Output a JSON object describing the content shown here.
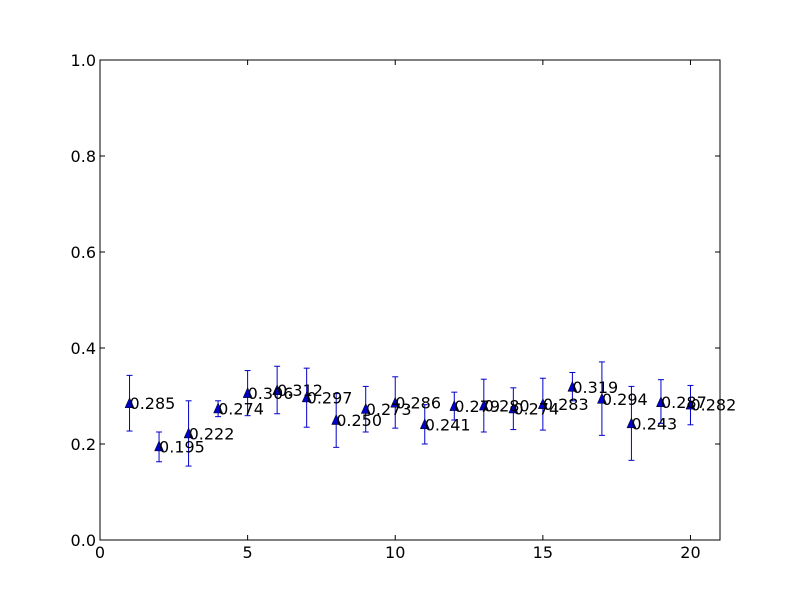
{
  "chart_data": {
    "type": "scatter",
    "title": "",
    "xlabel": "",
    "ylabel": "",
    "xlim": [
      0,
      21
    ],
    "ylim": [
      0.0,
      1.0
    ],
    "grid": false,
    "x_ticks": [
      0,
      5,
      10,
      15,
      20
    ],
    "x_tick_labels": [
      "0",
      "5",
      "10",
      "15",
      "20"
    ],
    "y_ticks": [
      0.0,
      0.2,
      0.4,
      0.6,
      0.8,
      1.0
    ],
    "y_tick_labels": [
      "0.0",
      "0.2",
      "0.4",
      "0.6",
      "0.8",
      "1.0"
    ],
    "series": [
      {
        "marker": "triangle",
        "color": "#0000cc",
        "points": [
          {
            "x": 1,
            "y": 0.285,
            "err_low": 0.227,
            "err_high": 0.343,
            "label": "0.285"
          },
          {
            "x": 2,
            "y": 0.195,
            "err_low": 0.163,
            "err_high": 0.225,
            "label": "0.195"
          },
          {
            "x": 3,
            "y": 0.222,
            "err_low": 0.154,
            "err_high": 0.29,
            "label": "0.222"
          },
          {
            "x": 4,
            "y": 0.274,
            "err_low": 0.257,
            "err_high": 0.29,
            "label": "0.274"
          },
          {
            "x": 5,
            "y": 0.306,
            "err_low": 0.259,
            "err_high": 0.353,
            "label": "0.306"
          },
          {
            "x": 6,
            "y": 0.312,
            "err_low": 0.263,
            "err_high": 0.362,
            "label": "0.312"
          },
          {
            "x": 7,
            "y": 0.297,
            "err_low": 0.235,
            "err_high": 0.358,
            "label": "0.297"
          },
          {
            "x": 8,
            "y": 0.25,
            "err_low": 0.193,
            "err_high": 0.305,
            "label": "0.250"
          },
          {
            "x": 9,
            "y": 0.273,
            "err_low": 0.225,
            "err_high": 0.32,
            "label": "0.273"
          },
          {
            "x": 10,
            "y": 0.286,
            "err_low": 0.233,
            "err_high": 0.34,
            "label": "0.286"
          },
          {
            "x": 11,
            "y": 0.241,
            "err_low": 0.2,
            "err_high": 0.282,
            "label": "0.241"
          },
          {
            "x": 12,
            "y": 0.279,
            "err_low": 0.25,
            "err_high": 0.308,
            "label": "0.279"
          },
          {
            "x": 13,
            "y": 0.28,
            "err_low": 0.225,
            "err_high": 0.335,
            "label": "0.280"
          },
          {
            "x": 14,
            "y": 0.274,
            "err_low": 0.23,
            "err_high": 0.317,
            "label": "0.274"
          },
          {
            "x": 15,
            "y": 0.283,
            "err_low": 0.229,
            "err_high": 0.337,
            "label": "0.283"
          },
          {
            "x": 16,
            "y": 0.319,
            "err_low": 0.29,
            "err_high": 0.349,
            "label": "0.319"
          },
          {
            "x": 17,
            "y": 0.294,
            "err_low": 0.218,
            "err_high": 0.371,
            "label": "0.294"
          },
          {
            "x": 18,
            "y": 0.243,
            "err_low": 0.166,
            "err_high": 0.32,
            "label": "0.243"
          },
          {
            "x": 19,
            "y": 0.287,
            "err_low": 0.243,
            "err_high": 0.334,
            "label": "0.287"
          },
          {
            "x": 20,
            "y": 0.282,
            "err_low": 0.24,
            "err_high": 0.322,
            "label": "0.282"
          }
        ]
      }
    ]
  }
}
